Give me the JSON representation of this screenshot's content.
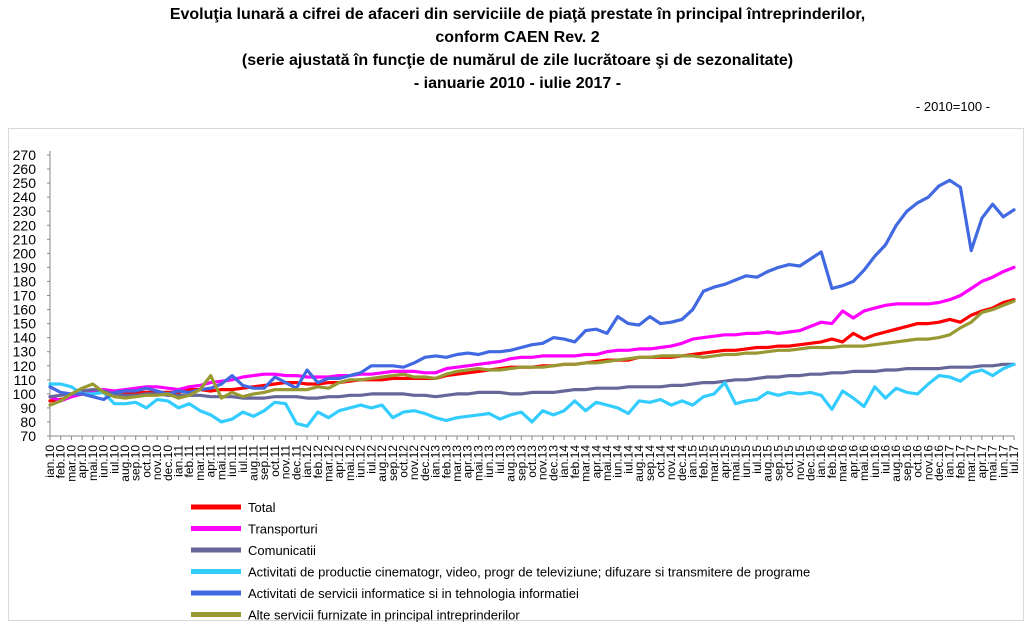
{
  "header": {
    "title_line1": "Evoluţia lunară a cifrei de afaceri din serviciile de piaţă prestate în principal întreprinderilor,",
    "title_line2": "conform CAEN Rev. 2",
    "title_line3": "(serie ajustată în funcţie de numărul de zile lucrătoare şi de sezonalitate)",
    "title_line4": "- ianuarie 2010 -  iulie 2017  -",
    "base_note": "- 2010=100 -"
  },
  "chart_data": {
    "type": "line",
    "ylim": [
      70,
      270
    ],
    "yticks": [
      70,
      80,
      90,
      100,
      110,
      120,
      130,
      140,
      150,
      160,
      170,
      180,
      190,
      200,
      210,
      220,
      230,
      240,
      250,
      260,
      270
    ],
    "grid": false,
    "legend_position": "bottom",
    "categories": [
      "ian.10",
      "feb.10",
      "mar.10",
      "apr.10",
      "mai.10",
      "iun.10",
      "iul.10",
      "aug.10",
      "sep.10",
      "oct.10",
      "nov.10",
      "dec.10",
      "ian.11",
      "feb.11",
      "mar.11",
      "apr.11",
      "mai.11",
      "iun.11",
      "iul.11",
      "aug.11",
      "sep.11",
      "oct.11",
      "nov.11",
      "dec.11",
      "ian.12",
      "feb.12",
      "mar.12",
      "apr.12",
      "mai.12",
      "iun.12",
      "iul.12",
      "aug.12",
      "sep.12",
      "oct.12",
      "nov.12",
      "dec.12",
      "ian.13",
      "feb.13",
      "mar.13",
      "apr.13",
      "mai.13",
      "iun.13",
      "iul.13",
      "aug.13",
      "sep.13",
      "oct.13",
      "nov.13",
      "dec.13",
      "ian.14",
      "feb.14",
      "mar.14",
      "apr.14",
      "mai.14",
      "iun.14",
      "iul.14",
      "aug.14",
      "sep.14",
      "oct.14",
      "nov.14",
      "dec.14",
      "ian.15",
      "feb.15",
      "mar.15",
      "apr.15",
      "mai.15",
      "iun.15",
      "iul.15",
      "aug.15",
      "sep.15",
      "oct.15",
      "nov.15",
      "dec.15",
      "ian.16",
      "feb.16",
      "mar.16",
      "apr.16",
      "mai.16",
      "iun.16",
      "iul.16",
      "aug.16",
      "sep.16",
      "oct.16",
      "nov.16",
      "dec.16",
      "ian.17",
      "feb.17",
      "mar.17",
      "apr.17",
      "mai.17",
      "iun.17",
      "iul.17"
    ],
    "series": [
      {
        "name": "Total",
        "color": "#ff0000",
        "values": [
          95,
          96,
          98,
          100,
          101,
          101,
          99,
          100,
          101,
          101,
          101,
          101,
          101,
          103,
          103,
          102,
          103,
          103,
          104,
          105,
          106,
          107,
          108,
          108,
          107,
          107,
          108,
          108,
          109,
          110,
          110,
          110,
          111,
          111,
          111,
          111,
          111,
          113,
          114,
          115,
          116,
          117,
          118,
          119,
          119,
          119,
          120,
          120,
          121,
          121,
          122,
          123,
          124,
          124,
          124,
          126,
          126,
          126,
          126,
          127,
          128,
          129,
          130,
          131,
          131,
          132,
          133,
          133,
          134,
          134,
          135,
          136,
          137,
          139,
          137,
          143,
          139,
          142,
          144,
          146,
          148,
          150,
          150,
          151,
          153,
          151,
          156,
          159,
          161,
          165,
          167
        ]
      },
      {
        "name": "Transporturi",
        "color": "#ff00ff",
        "values": [
          98,
          95,
          98,
          100,
          102,
          103,
          102,
          103,
          104,
          105,
          105,
          104,
          103,
          105,
          106,
          108,
          109,
          110,
          112,
          113,
          114,
          114,
          113,
          113,
          112,
          112,
          112,
          113,
          113,
          114,
          114,
          115,
          116,
          116,
          116,
          115,
          115,
          118,
          119,
          120,
          121,
          122,
          123,
          125,
          126,
          126,
          127,
          127,
          127,
          127,
          128,
          128,
          130,
          131,
          131,
          132,
          132,
          133,
          134,
          136,
          139,
          140,
          141,
          142,
          142,
          143,
          143,
          144,
          143,
          144,
          145,
          148,
          151,
          150,
          159,
          154,
          159,
          161,
          163,
          164,
          164,
          164,
          164,
          165,
          167,
          170,
          175,
          180,
          183,
          187,
          190
        ]
      },
      {
        "name": "Comunicatii",
        "color": "#666699",
        "values": [
          98,
          99,
          100,
          102,
          103,
          102,
          100,
          99,
          99,
          100,
          100,
          99,
          99,
          99,
          99,
          98,
          98,
          98,
          97,
          97,
          97,
          98,
          98,
          98,
          97,
          97,
          98,
          98,
          99,
          99,
          100,
          100,
          100,
          100,
          99,
          99,
          98,
          99,
          100,
          100,
          101,
          101,
          101,
          100,
          100,
          101,
          101,
          101,
          102,
          103,
          103,
          104,
          104,
          104,
          105,
          105,
          105,
          105,
          106,
          106,
          107,
          108,
          108,
          109,
          110,
          110,
          111,
          112,
          112,
          113,
          113,
          114,
          114,
          115,
          115,
          116,
          116,
          116,
          117,
          117,
          118,
          118,
          118,
          118,
          119,
          119,
          119,
          120,
          120,
          121,
          121
        ]
      },
      {
        "name": "Activitati de productie cinematogr, video, progr de televiziune; difuzare si transmitere de programe",
        "color": "#33ccff",
        "values": [
          107,
          107,
          105,
          100,
          100,
          101,
          93,
          93,
          94,
          90,
          96,
          95,
          90,
          93,
          88,
          85,
          80,
          82,
          87,
          84,
          88,
          94,
          93,
          79,
          77,
          87,
          83,
          88,
          90,
          92,
          90,
          92,
          83,
          87,
          88,
          86,
          83,
          81,
          83,
          84,
          85,
          86,
          82,
          85,
          87,
          80,
          88,
          85,
          88,
          95,
          88,
          94,
          92,
          90,
          86,
          95,
          94,
          96,
          92,
          95,
          92,
          98,
          100,
          108,
          93,
          95,
          96,
          101,
          99,
          101,
          100,
          101,
          99,
          89,
          102,
          97,
          91,
          105,
          97,
          104,
          101,
          100,
          107,
          113,
          112,
          109,
          115,
          117,
          113,
          118,
          121
        ]
      },
      {
        "name": "Activitati de servicii informatice si in tehnologia informatiei",
        "color": "#4169e1",
        "values": [
          105,
          101,
          100,
          100,
          98,
          96,
          101,
          102,
          102,
          104,
          102,
          100,
          102,
          101,
          103,
          104,
          107,
          113,
          106,
          104,
          104,
          112,
          108,
          104,
          117,
          108,
          111,
          111,
          113,
          115,
          120,
          120,
          120,
          119,
          122,
          126,
          127,
          126,
          128,
          129,
          128,
          130,
          130,
          131,
          133,
          135,
          136,
          140,
          139,
          137,
          145,
          146,
          143,
          155,
          150,
          149,
          155,
          150,
          151,
          153,
          160,
          173,
          176,
          178,
          181,
          184,
          183,
          187,
          190,
          192,
          191,
          196,
          201,
          175,
          177,
          180,
          188,
          198,
          206,
          220,
          230,
          236,
          240,
          248,
          252,
          247,
          202,
          225,
          235,
          226,
          231
        ]
      },
      {
        "name": "Alte servicii furnizate in principal intreprinderilor",
        "color": "#999933",
        "values": [
          92,
          95,
          100,
          104,
          107,
          101,
          98,
          97,
          98,
          99,
          99,
          100,
          97,
          99,
          103,
          113,
          97,
          101,
          98,
          100,
          101,
          103,
          103,
          103,
          103,
          105,
          104,
          108,
          110,
          110,
          111,
          112,
          113,
          114,
          112,
          112,
          111,
          114,
          116,
          117,
          118,
          117,
          117,
          118,
          119,
          119,
          119,
          120,
          121,
          121,
          122,
          122,
          123,
          124,
          125,
          126,
          126,
          127,
          127,
          127,
          127,
          126,
          127,
          128,
          128,
          129,
          129,
          130,
          131,
          131,
          132,
          133,
          133,
          133,
          134,
          134,
          134,
          135,
          136,
          137,
          138,
          139,
          139,
          140,
          142,
          147,
          151,
          158,
          160,
          163,
          166
        ]
      }
    ]
  }
}
